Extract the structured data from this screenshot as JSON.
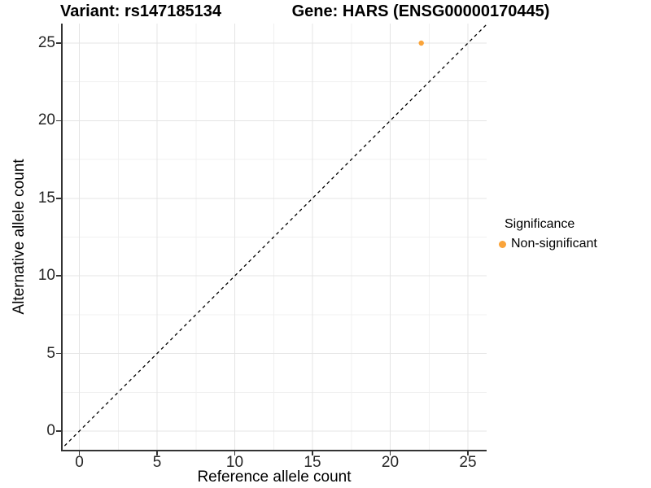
{
  "chart_data": {
    "type": "scatter",
    "titles": {
      "left": "Variant: rs147185134",
      "right": "Gene: HARS (ENSG00000170445)"
    },
    "xlabel": "Reference allele count",
    "ylabel": "Alternative allele count",
    "xlim": [
      -1.25,
      26.25
    ],
    "ylim": [
      -1.25,
      26.25
    ],
    "x_ticks": [
      0,
      5,
      10,
      15,
      20,
      25
    ],
    "y_ticks": [
      0,
      5,
      10,
      15,
      20,
      25
    ],
    "minor_ticks": [
      2.5,
      7.5,
      12.5,
      17.5,
      22.5
    ],
    "grid": "major+minor",
    "colors": {
      "major_grid": "#e4e4e4",
      "minor_grid": "#f0f0f0",
      "axis_line": "#333333",
      "tick_text": "#262626"
    },
    "points": [
      {
        "x": 22,
        "y": 25,
        "series": "Non-significant",
        "color": "#FAA43A"
      }
    ],
    "reference_line": {
      "kind": "identity",
      "style": "dashed",
      "color": "#000000"
    },
    "legend": {
      "title": "Significance",
      "position": "right",
      "entries": [
        {
          "label": "Non-significant",
          "color": "#FAA43A"
        }
      ]
    }
  }
}
